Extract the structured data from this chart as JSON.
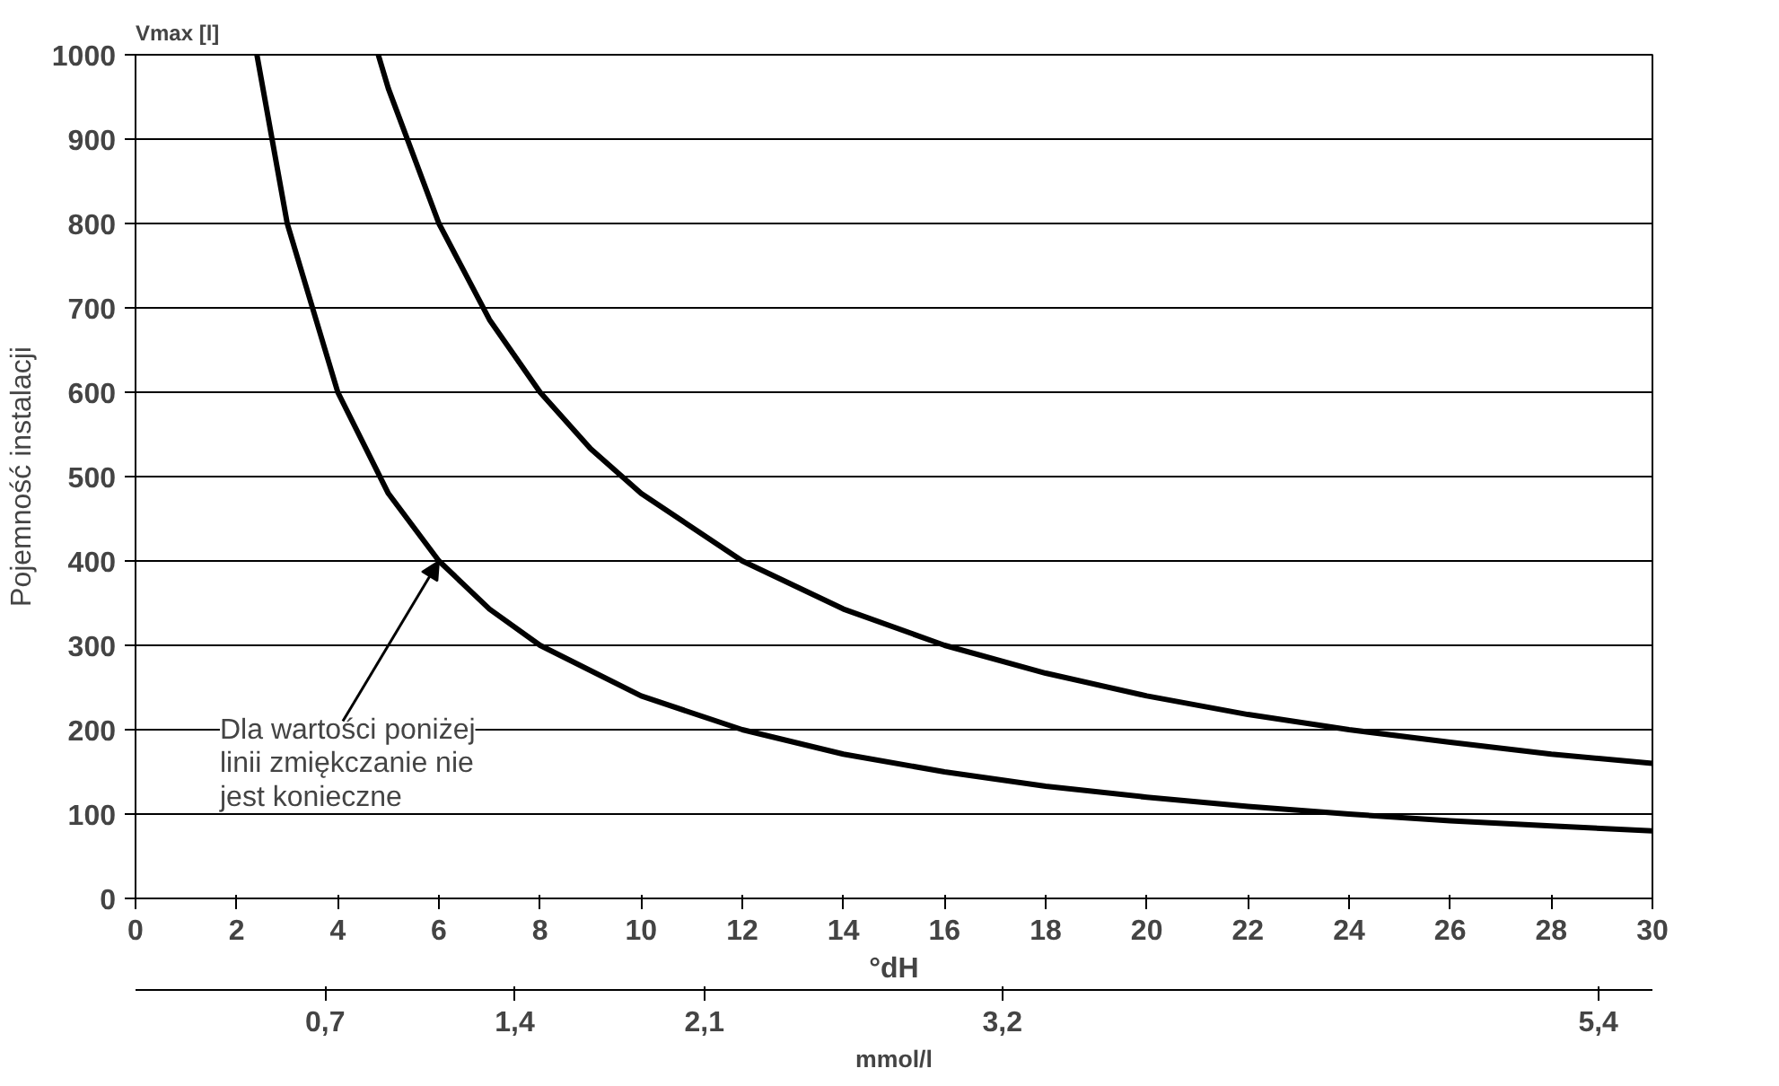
{
  "chart_data": {
    "type": "line",
    "ylabel": "Pojemność instalacji",
    "xlabel": "°dH",
    "x2label": "mmol/l",
    "annotations": [
      "Vmax [l]",
      {
        "text": "Dla wartości poniżej\nlinii zmiękczanie nie\njest konieczne",
        "x": 6,
        "y": 400
      }
    ],
    "series": [
      {
        "color": "#000000",
        "x": [
          2.4,
          3,
          4,
          5,
          6,
          7,
          8,
          10,
          12,
          14,
          16,
          18,
          20,
          22,
          24,
          26,
          28,
          30
        ],
        "values": [
          1000,
          800,
          600,
          480,
          400,
          343,
          300,
          240,
          200,
          171,
          150,
          133,
          120,
          109,
          100,
          92,
          86,
          80
        ]
      },
      {
        "color": "#000000",
        "x": [
          4.8,
          5,
          6,
          7,
          8,
          9,
          10,
          12,
          14,
          16,
          18,
          20,
          22,
          24,
          26,
          28,
          30
        ],
        "values": [
          1000,
          960,
          800,
          686,
          600,
          533,
          480,
          400,
          343,
          300,
          267,
          240,
          218,
          200,
          185,
          171,
          160
        ]
      }
    ],
    "xlim": [
      0,
      30
    ],
    "xticks": [
      0,
      2,
      4,
      6,
      8,
      10,
      12,
      14,
      16,
      18,
      20,
      22,
      24,
      26,
      28,
      30
    ],
    "x2lim": [
      0,
      5.6
    ],
    "x2ticks": [
      {
        "value": 0.7,
        "label": "0,7"
      },
      {
        "value": 1.4,
        "label": "1,4"
      },
      {
        "value": 2.1,
        "label": "2,1"
      },
      {
        "value": 3.2,
        "label": "3,2"
      },
      {
        "value": 5.4,
        "label": "5,4"
      }
    ],
    "ylim": [
      0,
      1000
    ],
    "yticks": [
      0,
      100,
      200,
      300,
      400,
      500,
      600,
      700,
      800,
      900,
      1000
    ],
    "grid": "y",
    "marker": "none",
    "line_style": "solid"
  }
}
